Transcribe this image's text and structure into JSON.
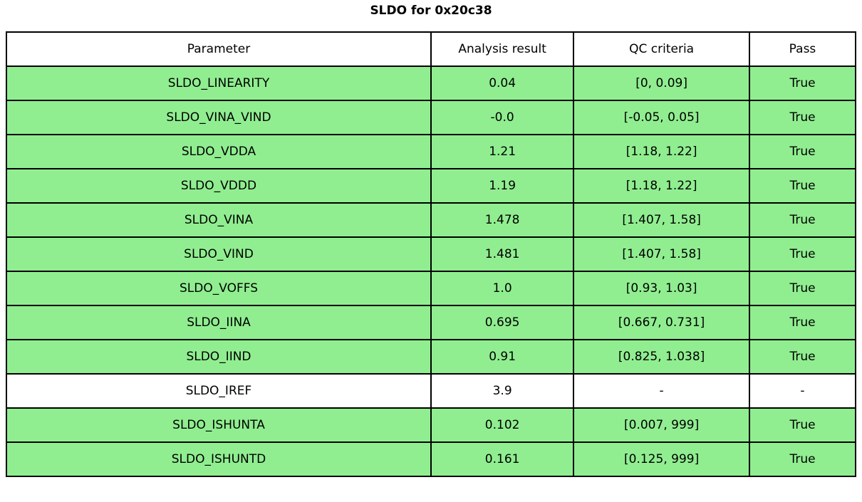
{
  "title": "SLDO for 0x20c38",
  "colors": {
    "row_pass": "#90EE90",
    "row_default": "#ffffff",
    "border": "#000000",
    "text": "#000000"
  },
  "table": {
    "headers": [
      "Parameter",
      "Analysis result",
      "QC criteria",
      "Pass"
    ],
    "rows": [
      {
        "parameter": "SLDO_LINEARITY",
        "result": "0.04",
        "qc": "[0, 0.09]",
        "pass": "True",
        "highlighted": true
      },
      {
        "parameter": "SLDO_VINA_VIND",
        "result": "-0.0",
        "qc": "[-0.05, 0.05]",
        "pass": "True",
        "highlighted": true
      },
      {
        "parameter": "SLDO_VDDA",
        "result": "1.21",
        "qc": "[1.18, 1.22]",
        "pass": "True",
        "highlighted": true
      },
      {
        "parameter": "SLDO_VDDD",
        "result": "1.19",
        "qc": "[1.18, 1.22]",
        "pass": "True",
        "highlighted": true
      },
      {
        "parameter": "SLDO_VINA",
        "result": "1.478",
        "qc": "[1.407, 1.58]",
        "pass": "True",
        "highlighted": true
      },
      {
        "parameter": "SLDO_VIND",
        "result": "1.481",
        "qc": "[1.407, 1.58]",
        "pass": "True",
        "highlighted": true
      },
      {
        "parameter": "SLDO_VOFFS",
        "result": "1.0",
        "qc": "[0.93, 1.03]",
        "pass": "True",
        "highlighted": true
      },
      {
        "parameter": "SLDO_IINA",
        "result": "0.695",
        "qc": "[0.667, 0.731]",
        "pass": "True",
        "highlighted": true
      },
      {
        "parameter": "SLDO_IIND",
        "result": "0.91",
        "qc": "[0.825, 1.038]",
        "pass": "True",
        "highlighted": true
      },
      {
        "parameter": "SLDO_IREF",
        "result": "3.9",
        "qc": "-",
        "pass": "-",
        "highlighted": false
      },
      {
        "parameter": "SLDO_ISHUNTA",
        "result": "0.102",
        "qc": "[0.007, 999]",
        "pass": "True",
        "highlighted": true
      },
      {
        "parameter": "SLDO_ISHUNTD",
        "result": "0.161",
        "qc": "[0.125, 999]",
        "pass": "True",
        "highlighted": true
      }
    ]
  },
  "chart_data": {
    "type": "table",
    "title": "SLDO for 0x20c38",
    "columns": [
      "Parameter",
      "Analysis result",
      "QC criteria",
      "Pass"
    ],
    "rows": [
      [
        "SLDO_LINEARITY",
        "0.04",
        "[0, 0.09]",
        "True"
      ],
      [
        "SLDO_VINA_VIND",
        "-0.0",
        "[-0.05, 0.05]",
        "True"
      ],
      [
        "SLDO_VDDA",
        "1.21",
        "[1.18, 1.22]",
        "True"
      ],
      [
        "SLDO_VDDD",
        "1.19",
        "[1.18, 1.22]",
        "True"
      ],
      [
        "SLDO_VINA",
        "1.478",
        "[1.407, 1.58]",
        "True"
      ],
      [
        "SLDO_VIND",
        "1.481",
        "[1.407, 1.58]",
        "True"
      ],
      [
        "SLDO_VOFFS",
        "1.0",
        "[0.93, 1.03]",
        "True"
      ],
      [
        "SLDO_IINA",
        "0.695",
        "[0.667, 0.731]",
        "True"
      ],
      [
        "SLDO_IIND",
        "0.91",
        "[0.825, 1.038]",
        "True"
      ],
      [
        "SLDO_IREF",
        "3.9",
        "-",
        "-"
      ],
      [
        "SLDO_ISHUNTA",
        "0.102",
        "[0.007, 999]",
        "True"
      ],
      [
        "SLDO_ISHUNTD",
        "0.161",
        "[0.125, 999]",
        "True"
      ]
    ],
    "layout": {
      "header_background": "#ffffff",
      "pass_row_background": "#90EE90",
      "grid": "on"
    }
  }
}
